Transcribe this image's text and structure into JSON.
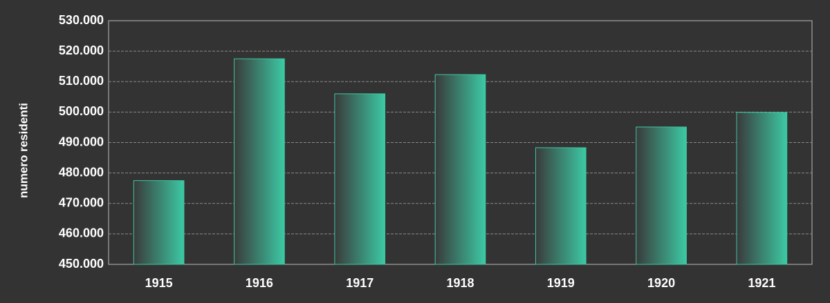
{
  "chart_data": {
    "type": "bar",
    "y_label": "numero residenti",
    "categories": [
      "1915",
      "1916",
      "1917",
      "1918",
      "1919",
      "1920",
      "1921"
    ],
    "values": [
      477500,
      517500,
      506000,
      512300,
      488300,
      495100,
      499900
    ],
    "color": "#3cc9a4",
    "ylim": [
      450000,
      530000
    ],
    "yticks": [
      {
        "value": 450000,
        "label": "450.000"
      },
      {
        "value": 460000,
        "label": "460.000"
      },
      {
        "value": 470000,
        "label": "470.000"
      },
      {
        "value": 480000,
        "label": "480.000"
      },
      {
        "value": 490000,
        "label": "490.000"
      },
      {
        "value": 500000,
        "label": "500.000"
      },
      {
        "value": 510000,
        "label": "510.000"
      },
      {
        "value": 520000,
        "label": "520.000"
      },
      {
        "value": 530000,
        "label": "530.000"
      }
    ],
    "grid": true
  }
}
